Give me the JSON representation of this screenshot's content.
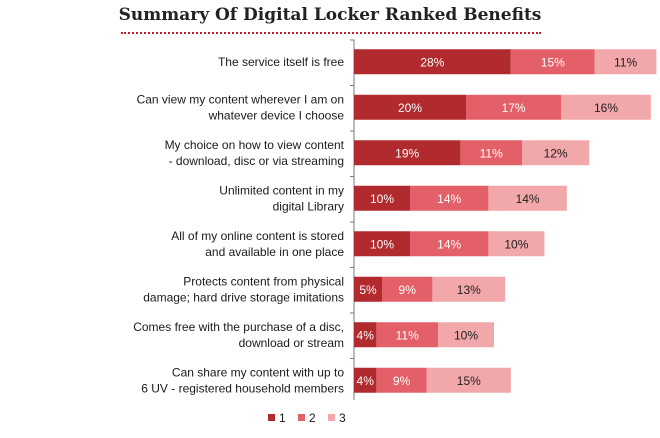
{
  "chart_data": {
    "type": "bar",
    "orientation": "horizontal",
    "stacked": true,
    "title": "Summary Of Digital Locker Ranked Benefits",
    "xlabel": "",
    "ylabel": "",
    "xlim": [
      0,
      60
    ],
    "grid": false,
    "legend_position": "bottom",
    "categories": [
      [
        "The service itself is free"
      ],
      [
        "Can view my content wherever I am on",
        "whatever device I choose"
      ],
      [
        "My choice on how to view content",
        "- download, disc or via streaming"
      ],
      [
        "Unlimited content in my",
        "digital Library"
      ],
      [
        "All of my online content is stored",
        "and available in one place"
      ],
      [
        "Protects content from physical",
        "damage; hard drive storage imitations"
      ],
      [
        "Comes free with the purchase of a disc,",
        "download or stream"
      ],
      [
        "Can share my content with up to",
        "6 UV - registered household  members"
      ]
    ],
    "series": [
      {
        "name": "1",
        "color": "#b02a2e",
        "label_color": "#ffffff",
        "values": [
          28,
          20,
          19,
          10,
          10,
          5,
          4,
          4
        ]
      },
      {
        "name": "2",
        "color": "#e36068",
        "label_color": "#ffffff",
        "values": [
          15,
          17,
          11,
          14,
          14,
          9,
          11,
          9
        ]
      },
      {
        "name": "3",
        "color": "#f2a7aa",
        "label_color": "#222222",
        "values": [
          11,
          16,
          12,
          14,
          10,
          13,
          10,
          15
        ]
      }
    ],
    "value_suffix": "%"
  }
}
